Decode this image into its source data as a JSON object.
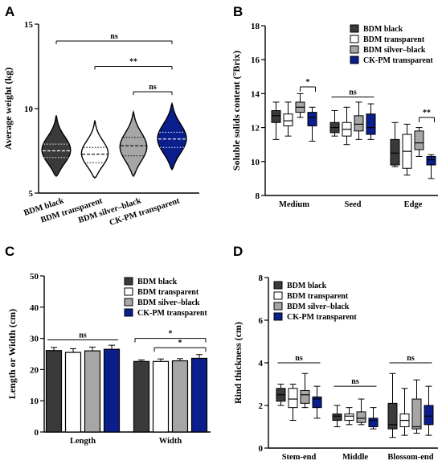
{
  "colors": {
    "BDM black": "#3a3a3a",
    "BDM transparent": "#ffffff",
    "BDM silver–black": "#a6a6a6",
    "CK-PM transparent": "#0a1e8c"
  },
  "chart_data": [
    {
      "panel": "A",
      "type": "violin",
      "ylabel": "Average weight (kg)",
      "ylim": [
        5,
        15
      ],
      "yticks": [
        5,
        10,
        15
      ],
      "categories": [
        "BDM black",
        "BDM transparent",
        "BDM silver–black",
        "CK-PM transparent"
      ],
      "series": [
        {
          "name": "BDM black",
          "min": 6.0,
          "max": 9.6,
          "median": 7.5,
          "q1": 7.1,
          "q3": 7.9,
          "mode": 7.5,
          "width": 0.45
        },
        {
          "name": "BDM transparent",
          "min": 5.9,
          "max": 9.3,
          "median": 7.3,
          "q1": 6.8,
          "q3": 7.7,
          "mode": 7.3,
          "width": 0.42
        },
        {
          "name": "BDM silver–black",
          "min": 6.0,
          "max": 9.8,
          "median": 7.8,
          "q1": 7.2,
          "q3": 8.3,
          "mode": 7.7,
          "width": 0.42
        },
        {
          "name": "CK-PM transparent",
          "min": 6.4,
          "max": 10.3,
          "median": 8.2,
          "q1": 7.7,
          "q3": 8.6,
          "mode": 8.2,
          "width": 0.45
        }
      ],
      "significance": [
        {
          "from": 0,
          "to": 3,
          "label": "ns",
          "y": 14.0
        },
        {
          "from": 1,
          "to": 3,
          "label": "**",
          "y": 12.5
        },
        {
          "from": 2,
          "to": 3,
          "label": "ns",
          "y": 11.0
        }
      ]
    },
    {
      "panel": "B",
      "type": "box",
      "ylabel": "Soluble solids content (°Brix)",
      "ylim": [
        8,
        18
      ],
      "yticks": [
        8,
        10,
        12,
        14,
        16,
        18
      ],
      "categories": [
        "Medium",
        "Seed",
        "Edge"
      ],
      "legend": [
        "BDM black",
        "BDM transparent",
        "BDM silver–black",
        "CK-PM transparent"
      ],
      "series": [
        {
          "name": "BDM black",
          "boxes": [
            {
              "min": 11.3,
              "q1": 12.3,
              "median": 12.7,
              "q3": 13.0,
              "max": 13.5
            },
            {
              "min": 11.5,
              "q1": 11.7,
              "median": 12.0,
              "q3": 12.3,
              "max": 13.0
            },
            {
              "min": 9.7,
              "q1": 9.8,
              "median": 10.5,
              "q3": 11.3,
              "max": 12.3
            }
          ]
        },
        {
          "name": "BDM transparent",
          "boxes": [
            {
              "min": 11.5,
              "q1": 12.1,
              "median": 12.4,
              "q3": 12.8,
              "max": 13.5
            },
            {
              "min": 11.0,
              "q1": 11.5,
              "median": 11.9,
              "q3": 12.3,
              "max": 13.2
            },
            {
              "min": 9.2,
              "q1": 9.6,
              "median": 10.6,
              "q3": 11.6,
              "max": 12.2
            }
          ]
        },
        {
          "name": "BDM silver–black",
          "boxes": [
            {
              "min": 12.6,
              "q1": 12.9,
              "median": 13.2,
              "q3": 13.5,
              "max": 14.0
            },
            {
              "min": 11.3,
              "q1": 11.8,
              "median": 12.2,
              "q3": 12.7,
              "max": 13.5
            },
            {
              "min": 10.3,
              "q1": 10.7,
              "median": 11.1,
              "q3": 11.8,
              "max": 12.0
            }
          ]
        },
        {
          "name": "CK-PM transparent",
          "boxes": [
            {
              "min": 11.2,
              "q1": 12.1,
              "median": 12.6,
              "q3": 12.9,
              "max": 13.2
            },
            {
              "min": 11.3,
              "q1": 11.6,
              "median": 12.0,
              "q3": 12.8,
              "max": 13.4
            },
            {
              "min": 9.0,
              "q1": 9.8,
              "median": 10.1,
              "q3": 10.3,
              "max": 10.4
            }
          ]
        }
      ],
      "significance": [
        {
          "category": 0,
          "from": 2,
          "to": 3,
          "label": "*",
          "y": 14.4
        },
        {
          "category": 1,
          "from": 0,
          "to": 3,
          "label": "ns",
          "y": 13.8
        },
        {
          "category": 2,
          "from": 2,
          "to": 3,
          "label": "**",
          "y": 12.6
        }
      ]
    },
    {
      "panel": "C",
      "type": "bar",
      "ylabel": "Length or Width (cm)",
      "ylim": [
        0,
        50
      ],
      "yticks": [
        0,
        10,
        20,
        30,
        40,
        50
      ],
      "categories": [
        "Length",
        "Width"
      ],
      "legend": [
        "BDM black",
        "BDM transparent",
        "BDM silver–black",
        "CK-PM transparent"
      ],
      "series": [
        {
          "name": "BDM black",
          "values": [
            26.1,
            22.6
          ],
          "errors": [
            1.0,
            0.5
          ]
        },
        {
          "name": "BDM transparent",
          "values": [
            25.5,
            22.6
          ],
          "errors": [
            1.2,
            0.8
          ]
        },
        {
          "name": "BDM silver–black",
          "values": [
            26.0,
            22.8
          ],
          "errors": [
            1.2,
            0.7
          ]
        },
        {
          "name": "CK-PM transparent",
          "values": [
            26.5,
            23.6
          ],
          "errors": [
            1.3,
            1.2
          ]
        }
      ],
      "significance": [
        {
          "category": 0,
          "from": 0,
          "to": 3,
          "label": "ns",
          "y": 29.5
        },
        {
          "category": 1,
          "from": 0,
          "to": 3,
          "label": "*",
          "y": 30.0
        },
        {
          "category": 1,
          "from": 1,
          "to": 3,
          "label": "*",
          "y": 27.0
        }
      ]
    },
    {
      "panel": "D",
      "type": "box",
      "ylabel": "Rind thickness (cm)",
      "ylim": [
        0,
        8
      ],
      "yticks": [
        0,
        2,
        4,
        6,
        8
      ],
      "categories": [
        "Stem-end",
        "Middle",
        "Blossom-end"
      ],
      "legend": [
        "BDM black",
        "BDM transparent",
        "BDM silver–black",
        "CK-PM transparent"
      ],
      "series": [
        {
          "name": "BDM black",
          "boxes": [
            {
              "min": 2.0,
              "q1": 2.2,
              "median": 2.5,
              "q3": 2.8,
              "max": 3.0
            },
            {
              "min": 1.0,
              "q1": 1.3,
              "median": 1.5,
              "q3": 1.6,
              "max": 2.0
            },
            {
              "min": 0.5,
              "q1": 0.9,
              "median": 1.1,
              "q3": 2.1,
              "max": 3.5
            }
          ]
        },
        {
          "name": "BDM transparent",
          "boxes": [
            {
              "min": 1.3,
              "q1": 1.9,
              "median": 2.3,
              "q3": 2.8,
              "max": 3.0
            },
            {
              "min": 1.1,
              "q1": 1.3,
              "median": 1.5,
              "q3": 1.6,
              "max": 1.9
            },
            {
              "min": 0.6,
              "q1": 1.0,
              "median": 1.3,
              "q3": 1.6,
              "max": 2.8
            }
          ]
        },
        {
          "name": "BDM silver–black",
          "boxes": [
            {
              "min": 1.9,
              "q1": 2.1,
              "median": 2.5,
              "q3": 2.7,
              "max": 3.5
            },
            {
              "min": 1.1,
              "q1": 1.2,
              "median": 1.4,
              "q3": 1.7,
              "max": 2.3
            },
            {
              "min": 0.7,
              "q1": 0.9,
              "median": 1.0,
              "q3": 2.3,
              "max": 3.2
            }
          ]
        },
        {
          "name": "CK-PM transparent",
          "boxes": [
            {
              "min": 1.4,
              "q1": 1.9,
              "median": 2.3,
              "q3": 2.4,
              "max": 2.9
            },
            {
              "min": 0.9,
              "q1": 1.0,
              "median": 1.3,
              "q3": 1.4,
              "max": 1.9
            },
            {
              "min": 0.6,
              "q1": 1.1,
              "median": 1.5,
              "q3": 2.0,
              "max": 2.9
            }
          ]
        }
      ],
      "significance": [
        {
          "category": 0,
          "from": 0,
          "to": 3,
          "label": "ns",
          "y": 4.0
        },
        {
          "category": 1,
          "from": 0,
          "to": 3,
          "label": "ns",
          "y": 2.9
        },
        {
          "category": 2,
          "from": 0,
          "to": 3,
          "label": "ns",
          "y": 4.0
        }
      ]
    }
  ]
}
